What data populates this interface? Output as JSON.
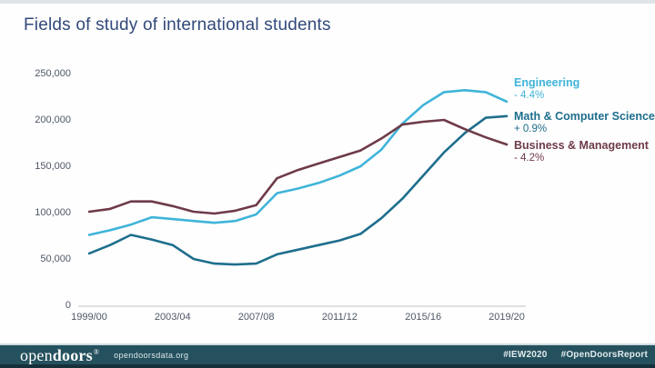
{
  "slide": {
    "title": "Fields of study of international students"
  },
  "chart_data": {
    "type": "line",
    "title": "Fields of study of international students",
    "categories": [
      "1999/00",
      "2000/01",
      "2001/02",
      "2002/03",
      "2003/04",
      "2004/05",
      "2005/06",
      "2006/07",
      "2007/08",
      "2008/09",
      "2009/10",
      "2010/11",
      "2011/12",
      "2012/13",
      "2013/14",
      "2014/15",
      "2015/16",
      "2016/17",
      "2017/18",
      "2018/19",
      "2019/20"
    ],
    "x_tick_labels": [
      "1999/00",
      "2003/04",
      "2007/08",
      "2011/12",
      "2015/16",
      "2019/20"
    ],
    "y_ticks": [
      {
        "value": 250000,
        "label": "250,000"
      },
      {
        "value": 200000,
        "label": "200,000"
      },
      {
        "value": 150000,
        "label": "150,000"
      },
      {
        "value": 100000,
        "label": "100,000"
      },
      {
        "value": 50000,
        "label": "50,000"
      },
      {
        "value": 0,
        "label": "0"
      }
    ],
    "ylim": [
      0,
      250000
    ],
    "grid": false,
    "legend_position": "right",
    "series": [
      {
        "name": "Engineering",
        "change_label": "- 4.4%",
        "color": "#3fb4d9",
        "values": [
          77000,
          82000,
          88000,
          96000,
          94000,
          92000,
          90000,
          92000,
          99000,
          122000,
          127000,
          133000,
          141000,
          151000,
          169000,
          197000,
          217000,
          231000,
          233000,
          231000,
          220800
        ]
      },
      {
        "name": "Math & Computer Science",
        "change_label": "+ 0.9%",
        "color": "#1e6e8d",
        "values": [
          57000,
          66000,
          77000,
          72000,
          66000,
          51000,
          46000,
          45000,
          46000,
          56000,
          61000,
          66000,
          71000,
          78000,
          95000,
          116000,
          141000,
          166000,
          187000,
          203300,
          205100
        ]
      },
      {
        "name": "Business & Management",
        "change_label": "- 4.2%",
        "color": "#6e3b48",
        "values": [
          102000,
          105000,
          113000,
          113000,
          108000,
          102000,
          100000,
          103000,
          109000,
          138000,
          147000,
          154000,
          161000,
          168000,
          181000,
          196000,
          199000,
          201000,
          191000,
          182200,
          174500
        ]
      }
    ]
  },
  "footer": {
    "logo_open": "open",
    "logo_doors": "doors",
    "logo_mark": "®",
    "site": "opendoorsdata.org",
    "hashtags": [
      "#IEW2020",
      "#OpenDoorsReport"
    ]
  },
  "colors": {
    "title_text": "#31497a",
    "axis_text": "#4e5866",
    "baseline": "#c9ced3",
    "footer_bar": "#25515e",
    "footer_bottom_strip": "#16303b",
    "engineering_line": "#3fb4d9",
    "math_cs_line": "#1e6e8d",
    "business_line": "#6e3b48"
  }
}
